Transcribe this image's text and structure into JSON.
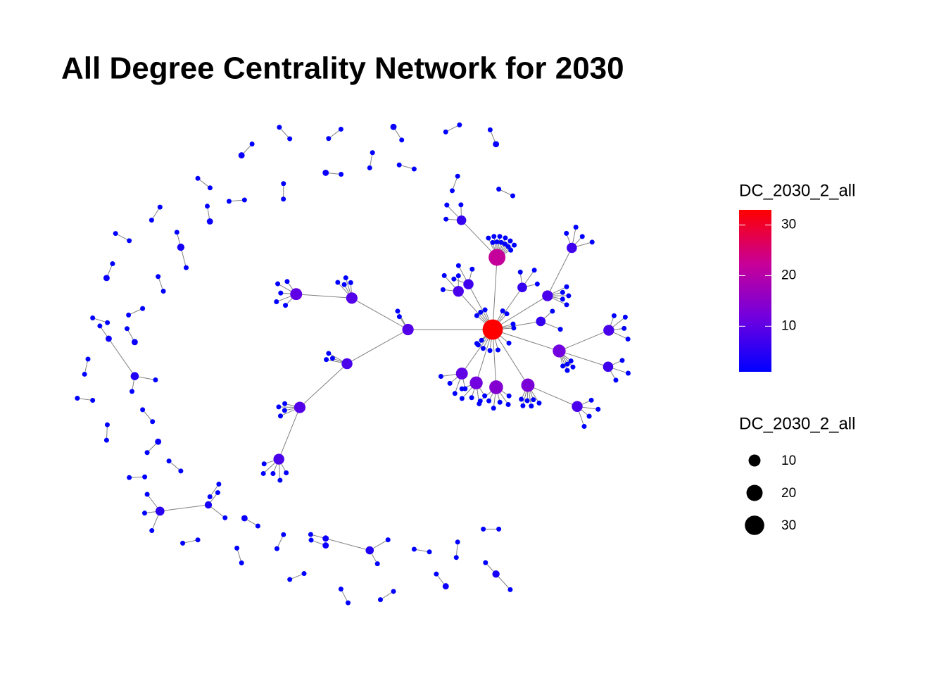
{
  "chart_data": {
    "type": "network",
    "title": "All Degree Centrality Network for 2030",
    "edge_color": "#808080",
    "color_legend": {
      "title": "DC_2030_2_all",
      "lim": [
        1,
        33
      ],
      "ticks": [
        10,
        20,
        30
      ],
      "colors": [
        "#0000ff",
        "#7000e0",
        "#c80098",
        "#ff0000"
      ]
    },
    "size_legend": {
      "title": "DC_2030_2_all",
      "values": [
        10,
        20,
        30
      ],
      "color": "#000000"
    },
    "components": [
      {
        "degree": 33,
        "children": [
          {
            "degree": 9,
            "children": [
              {
                "degree": 8,
                "children": [
                  {
                    "degree": 9,
                    "children": [
                      {
                        "degree": 8,
                        "children": [
                          {
                            "degree": 1
                          },
                          {
                            "degree": 1
                          },
                          {
                            "degree": 1
                          },
                          {
                            "degree": 1
                          },
                          {
                            "degree": 1
                          }
                        ]
                      },
                      {
                        "degree": 1
                      },
                      {
                        "degree": 1
                      },
                      {
                        "degree": 1
                      },
                      {
                        "degree": 1
                      }
                    ]
                  },
                  {
                    "degree": 1
                  },
                  {
                    "degree": 1
                  },
                  {
                    "degree": 1
                  }
                ]
              },
              {
                "degree": 9,
                "children": [
                  {
                    "degree": 10,
                    "children": [
                      {
                        "degree": 1
                      },
                      {
                        "degree": 1
                      },
                      {
                        "degree": 1
                      },
                      {
                        "degree": 1
                      },
                      {
                        "degree": 1
                      }
                    ]
                  },
                  {
                    "degree": 1
                  },
                  {
                    "degree": 1
                  },
                  {
                    "degree": 1
                  },
                  {
                    "degree": 1
                  }
                ]
              },
              {
                "degree": 1
              },
              {
                "degree": 1
              }
            ]
          },
          {
            "degree": 1
          },
          {
            "degree": 8,
            "children": [
              {
                "degree": 1
              },
              {
                "degree": 1
              },
              {
                "degree": 1
              }
            ]
          },
          {
            "degree": 1
          },
          {
            "degree": 7,
            "children": [
              {
                "degree": 1
              },
              {
                "degree": 1
              },
              {
                "degree": 1
              }
            ]
          },
          {
            "degree": 1
          },
          {
            "degree": 22,
            "children": [
              {
                "degree": 6,
                "children": [
                  {
                    "degree": 1
                  },
                  {
                    "degree": 1
                  },
                  {
                    "degree": 1
                  }
                ]
              },
              {
                "degree": 1
              },
              {
                "degree": 1
              },
              {
                "degree": 1
              },
              {
                "degree": 1
              },
              {
                "degree": 1
              },
              {
                "degree": 1
              },
              {
                "degree": 1
              },
              {
                "degree": 1
              },
              {
                "degree": 1
              },
              {
                "degree": 1
              },
              {
                "degree": 1
              },
              {
                "degree": 1
              }
            ]
          },
          {
            "degree": 1
          },
          {
            "degree": 6,
            "children": [
              {
                "degree": 1
              },
              {
                "degree": 1
              },
              {
                "degree": 1
              }
            ]
          },
          {
            "degree": 1
          },
          {
            "degree": 8,
            "children": [
              {
                "degree": 7,
                "children": [
                  {
                    "degree": 1
                  },
                  {
                    "degree": 1
                  },
                  {
                    "degree": 1
                  },
                  {
                    "degree": 1
                  }
                ]
              },
              {
                "degree": 1
              },
              {
                "degree": 1
              },
              {
                "degree": 1
              },
              {
                "degree": 1
              },
              {
                "degree": 1
              }
            ]
          },
          {
            "degree": 1
          },
          {
            "degree": 6,
            "children": [
              {
                "degree": 1
              },
              {
                "degree": 1
              }
            ]
          },
          {
            "degree": 1
          },
          {
            "degree": 12,
            "children": [
              {
                "degree": 8,
                "children": [
                  {
                    "degree": 1
                  },
                  {
                    "degree": 1
                  },
                  {
                    "degree": 1
                  },
                  {
                    "degree": 1
                  }
                ]
              },
              {
                "degree": 7,
                "children": [
                  {
                    "degree": 1
                  },
                  {
                    "degree": 1
                  },
                  {
                    "degree": 1
                  }
                ]
              },
              {
                "degree": 1
              },
              {
                "degree": 1
              },
              {
                "degree": 1
              },
              {
                "degree": 1
              },
              {
                "degree": 1
              }
            ]
          },
          {
            "degree": 1
          },
          {
            "degree": 13,
            "children": [
              {
                "degree": 8,
                "children": [
                  {
                    "degree": 1
                  },
                  {
                    "degree": 1
                  },
                  {
                    "degree": 1
                  },
                  {
                    "degree": 1
                  }
                ]
              },
              {
                "degree": 1
              },
              {
                "degree": 1
              },
              {
                "degree": 1
              },
              {
                "degree": 1
              },
              {
                "degree": 1
              },
              {
                "degree": 1
              }
            ]
          },
          {
            "degree": 1
          },
          {
            "degree": 14,
            "children": [
              {
                "degree": 1
              },
              {
                "degree": 1
              },
              {
                "degree": 1
              },
              {
                "degree": 1
              },
              {
                "degree": 1
              },
              {
                "degree": 1
              }
            ]
          },
          {
            "degree": 1
          },
          {
            "degree": 12,
            "children": [
              {
                "degree": 1
              },
              {
                "degree": 1
              },
              {
                "degree": 1
              },
              {
                "degree": 1
              },
              {
                "degree": 1
              }
            ]
          },
          {
            "degree": 1
          },
          {
            "degree": 10,
            "children": [
              {
                "degree": 1
              },
              {
                "degree": 1
              },
              {
                "degree": 1
              },
              {
                "degree": 1
              }
            ]
          },
          {
            "degree": 1
          },
          {
            "degree": 1
          },
          {
            "degree": 1
          }
        ]
      },
      {
        "degree": 1,
        "children": [
          {
            "degree": 1
          }
        ]
      },
      {
        "degree": 3,
        "children": [
          {
            "degree": 1
          },
          {
            "degree": 1
          }
        ]
      },
      {
        "degree": 1,
        "children": [
          {
            "degree": 1
          }
        ]
      },
      {
        "degree": 2,
        "children": [
          {
            "degree": 1
          }
        ]
      },
      {
        "degree": 1,
        "children": [
          {
            "degree": 1
          }
        ]
      },
      {
        "degree": 1,
        "children": [
          {
            "degree": 1
          }
        ]
      },
      {
        "degree": 4,
        "children": [
          {
            "degree": 2,
            "children": [
              {
                "degree": 1
              }
            ]
          },
          {
            "degree": 1
          },
          {
            "degree": 1
          }
        ]
      },
      {
        "degree": 1,
        "children": [
          {
            "degree": 1
          }
        ]
      },
      {
        "degree": 2,
        "children": [
          {
            "degree": 1
          }
        ]
      },
      {
        "degree": 1,
        "children": [
          {
            "degree": 1
          }
        ]
      },
      {
        "degree": 1,
        "children": [
          {
            "degree": 1
          }
        ]
      },
      {
        "degree": 1,
        "children": [
          {
            "degree": 1
          }
        ]
      },
      {
        "degree": 2,
        "children": [
          {
            "degree": 1
          }
        ]
      },
      {
        "degree": 1,
        "children": [
          {
            "degree": 1
          }
        ]
      },
      {
        "degree": 1,
        "children": [
          {
            "degree": 1
          }
        ]
      },
      {
        "degree": 5,
        "children": [
          {
            "degree": 3,
            "children": [
              {
                "degree": 1
              },
              {
                "degree": 1
              }
            ]
          },
          {
            "degree": 1
          },
          {
            "degree": 1
          },
          {
            "degree": 1
          }
        ]
      },
      {
        "degree": 1,
        "children": [
          {
            "degree": 1
          }
        ]
      },
      {
        "degree": 1,
        "children": [
          {
            "degree": 1
          }
        ]
      },
      {
        "degree": 2,
        "children": [
          {
            "degree": 1
          }
        ]
      },
      {
        "degree": 1,
        "children": [
          {
            "degree": 1
          }
        ]
      },
      {
        "degree": 1,
        "children": [
          {
            "degree": 1
          }
        ]
      },
      {
        "degree": 1,
        "children": [
          {
            "degree": 1
          }
        ]
      },
      {
        "degree": 4,
        "children": [
          {
            "degree": 2,
            "children": [
              {
                "degree": 1
              }
            ]
          },
          {
            "degree": 1
          },
          {
            "degree": 1
          }
        ]
      },
      {
        "degree": 1,
        "children": [
          {
            "degree": 1
          }
        ]
      },
      {
        "degree": 2,
        "children": [
          {
            "degree": 1
          }
        ]
      },
      {
        "degree": 1,
        "children": [
          {
            "degree": 1
          }
        ]
      },
      {
        "degree": 1,
        "children": [
          {
            "degree": 1
          }
        ]
      },
      {
        "degree": 2,
        "children": [
          {
            "degree": 1
          }
        ]
      },
      {
        "degree": 1,
        "children": [
          {
            "degree": 1
          }
        ]
      },
      {
        "degree": 1,
        "children": [
          {
            "degree": 1
          }
        ]
      },
      {
        "degree": 3,
        "children": [
          {
            "degree": 1
          },
          {
            "degree": 1
          }
        ]
      },
      {
        "degree": 1,
        "children": [
          {
            "degree": 1
          }
        ]
      },
      {
        "degree": 2,
        "children": [
          {
            "degree": 1
          }
        ]
      },
      {
        "degree": 1,
        "children": [
          {
            "degree": 1
          }
        ]
      },
      {
        "degree": 1,
        "children": [
          {
            "degree": 1
          }
        ]
      },
      {
        "degree": 2,
        "children": [
          {
            "degree": 1
          }
        ]
      },
      {
        "degree": 1,
        "children": [
          {
            "degree": 1
          }
        ]
      },
      {
        "degree": 1,
        "children": [
          {
            "degree": 1
          }
        ]
      },
      {
        "degree": 2,
        "children": [
          {
            "degree": 1
          }
        ]
      },
      {
        "degree": 1,
        "children": [
          {
            "degree": 1
          }
        ]
      },
      {
        "degree": 1,
        "children": [
          {
            "degree": 1
          }
        ]
      },
      {
        "degree": 2,
        "children": [
          {
            "degree": 1
          }
        ]
      },
      {
        "degree": 1,
        "children": [
          {
            "degree": 1
          }
        ]
      },
      {
        "degree": 1,
        "children": [
          {
            "degree": 1
          }
        ]
      },
      {
        "degree": 1,
        "children": [
          {
            "degree": 1
          }
        ]
      },
      {
        "degree": 2,
        "children": [
          {
            "degree": 1
          }
        ]
      },
      {
        "degree": 1,
        "children": [
          {
            "degree": 1
          }
        ]
      }
    ]
  }
}
